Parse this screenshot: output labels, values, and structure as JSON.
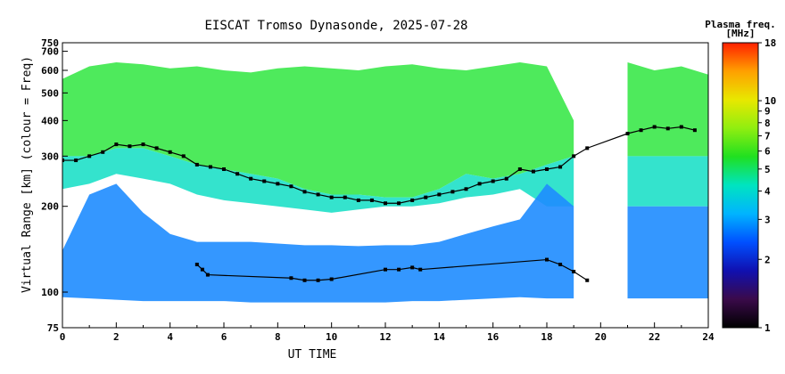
{
  "chart_data": {
    "type": "heatmap",
    "title": "EISCAT Tromso Dynasonde, 2025-07-28",
    "xlabel": "UT TIME",
    "ylabel": "Virtual Range [km] (colour = Freq)",
    "xlim": [
      0,
      24
    ],
    "ylim": [
      75,
      750
    ],
    "yscale": "log",
    "x_ticks": [
      0,
      2,
      4,
      6,
      8,
      10,
      12,
      14,
      16,
      18,
      20,
      22,
      24
    ],
    "y_ticks": [
      75,
      100,
      200,
      300,
      400,
      500,
      600,
      700,
      750
    ],
    "y_tick_labels": [
      {
        "value": 75,
        "label": "75"
      },
      {
        "value": 100,
        "label": "100"
      },
      {
        "value": 200,
        "label": "200"
      },
      {
        "value": 300,
        "label": "300"
      },
      {
        "value": 400,
        "label": "400"
      },
      {
        "value": 500,
        "label": "500"
      },
      {
        "value": 600,
        "label": "600"
      },
      {
        "value": 700,
        "label": "700"
      },
      {
        "value": 750,
        "label": "750"
      }
    ],
    "colorbar": {
      "title_line1": "Plasma freq.",
      "title_line2": "[MHz]",
      "scale": "log",
      "range": [
        1,
        18
      ],
      "ticks": [
        1,
        2,
        3,
        4,
        5,
        6,
        7,
        8,
        9,
        10,
        18
      ],
      "tick_labels": [
        "1",
        "2",
        "3",
        "4",
        "5",
        "6",
        "7",
        "8",
        "9",
        "10",
        "18"
      ],
      "colors": [
        "#000000",
        "#3a0a4a",
        "#1010b0",
        "#0050ff",
        "#00b4ff",
        "#00e4c0",
        "#20e020",
        "#90ee10",
        "#e8e800",
        "#ffa000",
        "#ff2000"
      ]
    },
    "grid": false,
    "gap_intervals": [
      [
        19.7,
        20.8
      ]
    ],
    "series": [
      {
        "band": "F-region upper",
        "color": "#3be84a",
        "top_km": [
          560,
          620,
          640,
          630,
          610,
          620,
          600,
          590,
          610,
          620,
          610,
          600,
          620,
          630,
          610,
          600,
          620,
          640,
          620,
          400,
          null,
          640,
          600,
          620,
          580
        ],
        "bottom_km": [
          300,
          300,
          320,
          320,
          300,
          280,
          270,
          260,
          250,
          230,
          220,
          220,
          215,
          215,
          230,
          260,
          250,
          260,
          280,
          300,
          null,
          300,
          300,
          300,
          300
        ]
      },
      {
        "band": "F-region lower",
        "color": "#1ee0c8",
        "top_km": [
          300,
          300,
          320,
          320,
          300,
          280,
          270,
          260,
          250,
          230,
          220,
          220,
          215,
          215,
          230,
          260,
          250,
          260,
          280,
          300,
          null,
          300,
          300,
          300,
          300
        ],
        "bottom_km": [
          230,
          240,
          260,
          250,
          240,
          220,
          210,
          205,
          200,
          195,
          190,
          195,
          200,
          200,
          205,
          215,
          220,
          230,
          200,
          200,
          null,
          200,
          200,
          200,
          200
        ]
      },
      {
        "band": "E-region",
        "color": "#1e8cff",
        "top_km": [
          140,
          220,
          240,
          190,
          160,
          150,
          150,
          150,
          148,
          146,
          146,
          145,
          146,
          146,
          150,
          160,
          170,
          180,
          240,
          200,
          null,
          200,
          200,
          200,
          200
        ],
        "bottom_km": [
          96,
          95,
          94,
          93,
          93,
          93,
          93,
          92,
          92,
          92,
          92,
          92,
          92,
          93,
          93,
          94,
          95,
          96,
          95,
          95,
          null,
          95,
          95,
          95,
          95
        ]
      },
      {
        "band": "traced F-layer (black)",
        "color": "#000000",
        "x": [
          0,
          0.5,
          1,
          1.5,
          2,
          2.5,
          3,
          3.5,
          4,
          4.5,
          5,
          5.5,
          6,
          6.5,
          7,
          7.5,
          8,
          8.5,
          9,
          9.5,
          10,
          10.5,
          11,
          11.5,
          12,
          12.5,
          13,
          13.5,
          14,
          14.5,
          15,
          15.5,
          16,
          16.5,
          17,
          17.5,
          18,
          18.5,
          19,
          19.5,
          21,
          21.5,
          22,
          22.5,
          23,
          23.5
        ],
        "y": [
          290,
          290,
          300,
          310,
          330,
          325,
          330,
          320,
          310,
          300,
          280,
          275,
          270,
          260,
          250,
          245,
          240,
          235,
          225,
          220,
          215,
          215,
          210,
          210,
          205,
          205,
          210,
          215,
          220,
          225,
          230,
          240,
          245,
          250,
          270,
          265,
          270,
          275,
          300,
          320,
          360,
          370,
          380,
          375,
          380,
          370
        ]
      },
      {
        "band": "traced E-layer (black)",
        "color": "#000000",
        "x": [
          5,
          5.2,
          5.4,
          8.5,
          9,
          9.5,
          10,
          12,
          12.5,
          13,
          13.3,
          18,
          18.5,
          19,
          19.5
        ],
        "y": [
          125,
          120,
          115,
          112,
          110,
          110,
          111,
          120,
          120,
          122,
          120,
          130,
          125,
          118,
          110
        ]
      }
    ]
  }
}
